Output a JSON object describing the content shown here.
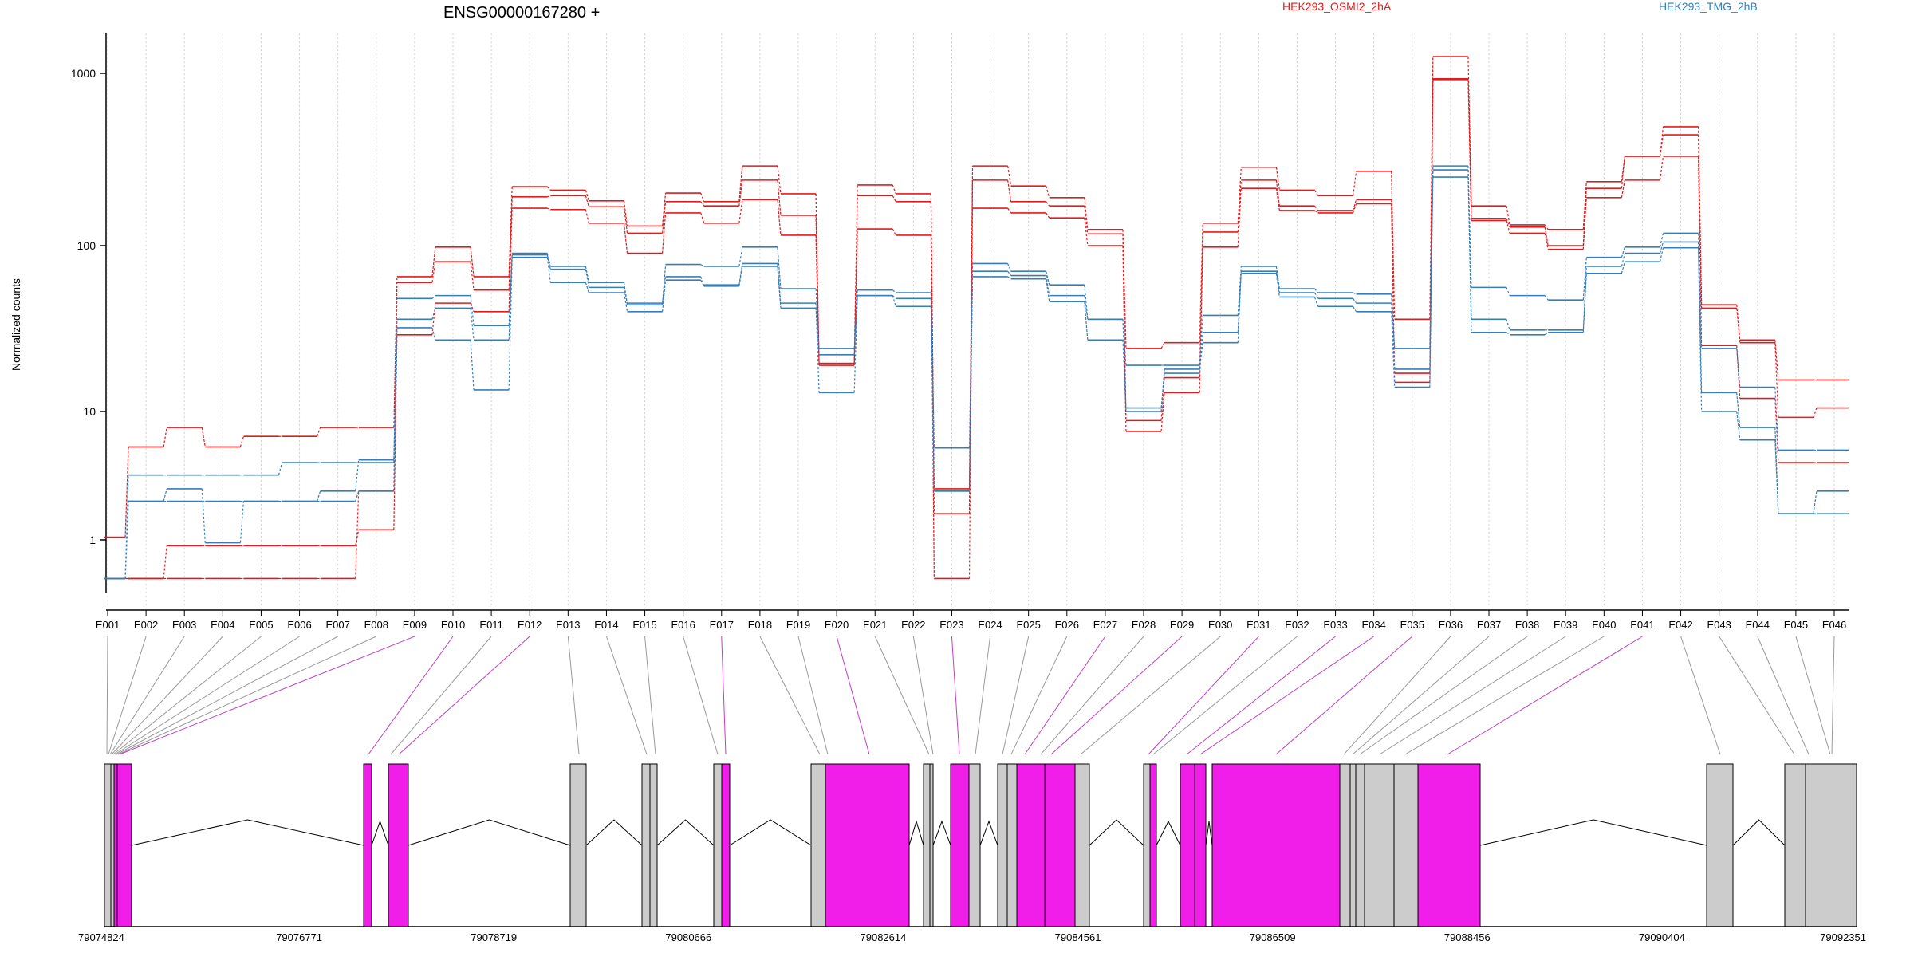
{
  "chart_data": {
    "type": "line",
    "title": "ENSG00000167280 +",
    "ylabel": "Normalized counts",
    "yscale": "log",
    "ylim": [
      0.5,
      1600
    ],
    "yticks": [
      1,
      10,
      100,
      1000
    ],
    "ytick_labels": [
      "1",
      "10",
      "100",
      "1000"
    ],
    "grid": "vertical dotted lines at exon boundaries",
    "legend_position": "top-right",
    "exons": [
      "E001",
      "E002",
      "E003",
      "E004",
      "E005",
      "E006",
      "E007",
      "E008",
      "E009",
      "E010",
      "E011",
      "E012",
      "E013",
      "E014",
      "E015",
      "E016",
      "E017",
      "E018",
      "E019",
      "E020",
      "E021",
      "E022",
      "E023",
      "E024",
      "E025",
      "E026",
      "E027",
      "E028",
      "E029",
      "E030",
      "E031",
      "E032",
      "E033",
      "E034",
      "E035",
      "E036",
      "E037",
      "E038",
      "E039",
      "E040",
      "E041",
      "E042",
      "E043",
      "E044",
      "E045",
      "E046"
    ],
    "series": [
      {
        "name": "HEK293_OSMI2_2hA",
        "group": "red",
        "values": [
          1.05,
          5.3,
          7.5,
          5.3,
          6.4,
          6.4,
          7.5,
          7.5,
          65,
          98,
          65,
          220,
          210,
          182,
          130,
          202,
          180,
          290,
          200,
          19.5,
          225,
          200,
          1.6,
          290,
          222,
          190,
          124,
          24,
          26,
          135,
          285,
          210,
          195,
          270,
          36,
          1250,
          170,
          132,
          124,
          235,
          330,
          490,
          44,
          27,
          15.5,
          15.5
        ]
      },
      {
        "name": "HEK293_OSMI2_2hA",
        "group": "red",
        "values": [
          0.5,
          0.5,
          0.5,
          0.5,
          0.5,
          0.5,
          0.5,
          2.4,
          60,
          80,
          54,
          192,
          195,
          168,
          118,
          180,
          170,
          240,
          150,
          19.5,
          195,
          180,
          2.5,
          240,
          180,
          170,
          117,
          8.5,
          16,
          120,
          240,
          170,
          160,
          185,
          17,
          930,
          144,
          128,
          100,
          215,
          330,
          440,
          42,
          26,
          9,
          10.5
        ]
      },
      {
        "name": "HEK293_OSMI2_2hA",
        "group": "red",
        "values": [
          0.5,
          0.5,
          0.9,
          0.9,
          0.9,
          0.9,
          0.9,
          1.2,
          29,
          45,
          40,
          165,
          162,
          135,
          90,
          155,
          135,
          185,
          115,
          19,
          125,
          115,
          0.5,
          165,
          155,
          145,
          100,
          7,
          13,
          98,
          215,
          160,
          155,
          175,
          15,
          920,
          140,
          118,
          95,
          190,
          240,
          330,
          25,
          12,
          4,
          4
        ]
      },
      {
        "name": "HEK293_TMG_2hB",
        "group": "blue",
        "values": [
          0.5,
          3.2,
          3.2,
          3.2,
          3.2,
          4,
          4,
          4,
          48,
          50,
          33,
          90,
          75,
          60,
          44,
          77,
          75,
          98,
          55,
          24,
          54,
          52,
          5.2,
          78,
          70,
          58,
          36,
          19,
          19,
          38,
          75,
          55,
          52,
          51,
          24,
          290,
          56,
          50,
          47,
          85,
          98,
          118,
          24,
          14,
          5,
          5
        ]
      },
      {
        "name": "HEK293_TMG_2hB",
        "group": "blue",
        "values": [
          0.5,
          2,
          2.5,
          0.95,
          2,
          2,
          2,
          2.4,
          36,
          42,
          27,
          88,
          72,
          56,
          45,
          65,
          58,
          78,
          45,
          13,
          50,
          48,
          2.4,
          70,
          66,
          50,
          36,
          10.5,
          17,
          30,
          70,
          52,
          48,
          45,
          18,
          275,
          36,
          31,
          31,
          75,
          90,
          105,
          13,
          7.5,
          1.6,
          2.4
        ]
      },
      {
        "name": "HEK293_TMG_2hB",
        "group": "blue",
        "values": [
          0.5,
          2,
          2,
          2,
          2,
          2,
          2.4,
          4.2,
          32,
          27,
          13.5,
          85,
          60,
          52,
          40,
          62,
          57,
          75,
          42,
          22,
          50,
          43,
          2.4,
          65,
          63,
          46,
          27,
          10,
          18,
          26,
          68,
          49,
          43,
          40,
          14,
          250,
          30,
          29,
          30,
          68,
          80,
          97,
          10,
          6,
          1.6,
          1.6
        ]
      }
    ],
    "gene_model": {
      "coordinate_ticks": [
        "79074824",
        "79076771",
        "79078719",
        "79080666",
        "79082614",
        "79084561",
        "79086509",
        "79088456",
        "79090404",
        "79092351"
      ]
    }
  },
  "colors": {
    "red_series": "#e41a1c",
    "blue_series": "#377eb8",
    "highlight_exon": "#f11ee9",
    "normal_exon": "#cccccc",
    "highlight_connector": "#c040c0",
    "normal_connector": "#999999"
  }
}
